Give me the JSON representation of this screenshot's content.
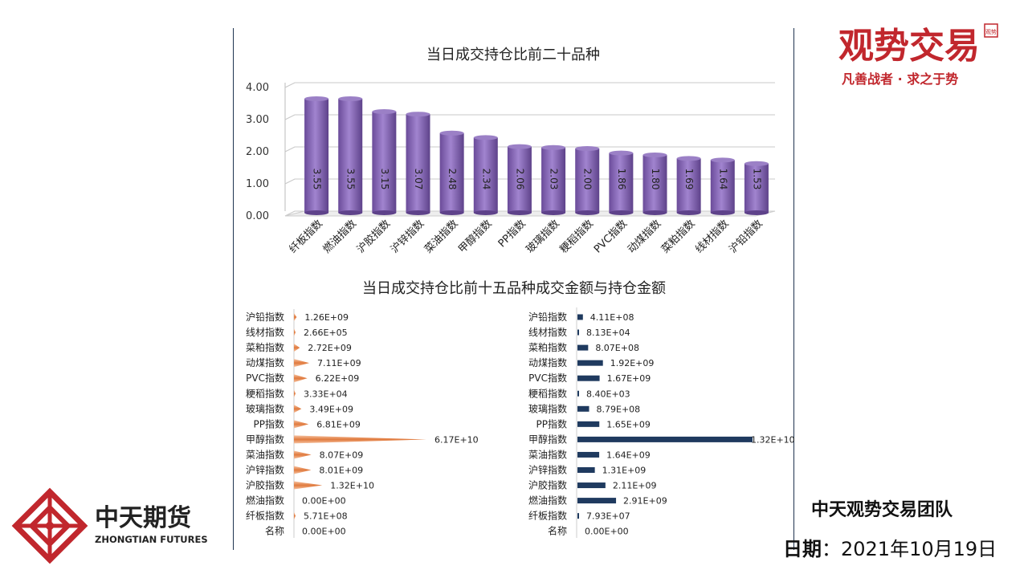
{
  "brand_top": {
    "name": "观势交易",
    "slogan": "凡善战者 · 求之于势",
    "seal": "观势"
  },
  "brand_bottom": {
    "name_cn": "中天期货",
    "name_en": "ZHONGTIAN FUTURES"
  },
  "team": "中天观势交易团队",
  "date_label": "日期",
  "date_sep": "：",
  "date_value": "2021年10月19日",
  "colors": {
    "bar_purple": "#8a67b8",
    "bar_orange": "#e98b55",
    "bar_navy": "#1f3a5f",
    "axis": "#1f3450"
  },
  "chart_data": [
    {
      "type": "bar",
      "title": "当日成交持仓比前二十品种",
      "categories": [
        "纤板指数",
        "燃油指数",
        "沪胶指数",
        "沪锌指数",
        "菜油指数",
        "甲醇指数",
        "PP指数",
        "玻璃指数",
        "粳稻指数",
        "PVC指数",
        "动煤指数",
        "菜粕指数",
        "线材指数",
        "沪铅指数"
      ],
      "values": [
        3.55,
        3.55,
        3.15,
        3.07,
        2.48,
        2.34,
        2.06,
        2.03,
        2.0,
        1.86,
        1.8,
        1.69,
        1.64,
        1.53
      ],
      "value_labels": [
        "3.55",
        "3.55",
        "3.15",
        "3.07",
        "2.48",
        "2.34",
        "2.06",
        "2.03",
        "2.00",
        "1.86",
        "1.80",
        "1.69",
        "1.64",
        "1.53"
      ],
      "yticks": [
        "4.00",
        "3.00",
        "2.00",
        "1.00",
        "0.00"
      ],
      "ylim": [
        0,
        4
      ],
      "grid": true
    },
    {
      "type": "bar",
      "orientation": "horizontal",
      "title": "当日成交持仓比前十五品种成交金额与持仓金额",
      "categories": [
        "沪铅指数",
        "线材指数",
        "菜粕指数",
        "动煤指数",
        "PVC指数",
        "粳稻指数",
        "玻璃指数",
        "PP指数",
        "甲醇指数",
        "菜油指数",
        "沪锌指数",
        "沪胶指数",
        "燃油指数",
        "纤板指数",
        "名称"
      ],
      "values": [
        1260000000.0,
        266000.0,
        2720000000.0,
        7110000000.0,
        6220000000.0,
        33300.0,
        3490000000.0,
        6810000000.0,
        61700000000.0,
        8070000000.0,
        8010000000.0,
        13200000000.0,
        0,
        571000000.0,
        0
      ],
      "value_labels": [
        "1.26E+09",
        "2.66E+05",
        "2.72E+09",
        "7.11E+09",
        "6.22E+09",
        "3.33E+04",
        "3.49E+09",
        "6.81E+09",
        "6.17E+10",
        "8.07E+09",
        "8.01E+09",
        "1.32E+10",
        "0.00E+00",
        "5.71E+08",
        "0.00E+00"
      ]
    },
    {
      "type": "bar",
      "orientation": "horizontal",
      "categories": [
        "沪铅指数",
        "线材指数",
        "菜粕指数",
        "动煤指数",
        "PVC指数",
        "粳稻指数",
        "玻璃指数",
        "PP指数",
        "甲醇指数",
        "菜油指数",
        "沪锌指数",
        "沪胶指数",
        "燃油指数",
        "纤板指数",
        "名称"
      ],
      "values": [
        411000000.0,
        81300.0,
        807000000.0,
        1920000000.0,
        1670000000.0,
        8400.0,
        879000000.0,
        1650000000.0,
        13200000000.0,
        1640000000.0,
        1310000000.0,
        2110000000.0,
        2910000000.0,
        79300000.0,
        0
      ],
      "value_labels": [
        "4.11E+08",
        "8.13E+04",
        "8.07E+08",
        "1.92E+09",
        "1.67E+09",
        "8.40E+03",
        "8.79E+08",
        "1.65E+09",
        "1.32E+10",
        "1.64E+09",
        "1.31E+09",
        "2.11E+09",
        "2.91E+09",
        "7.93E+07",
        "0.00E+00"
      ]
    }
  ]
}
